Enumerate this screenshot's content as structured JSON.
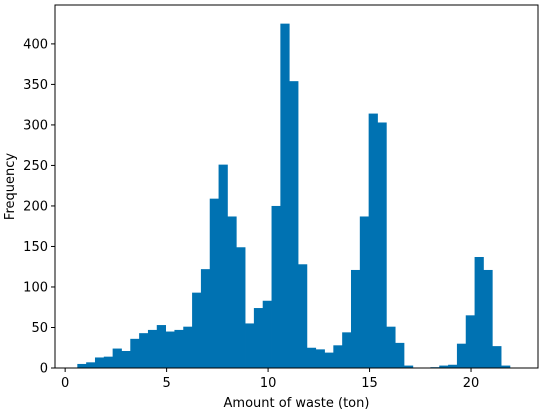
{
  "chart_data": {
    "type": "bar",
    "subtype": "histogram",
    "title": "",
    "xlabel": "Amount of waste (ton)",
    "ylabel": "Frequency",
    "xlim": [
      -0.5,
      23.3
    ],
    "ylim": [
      0,
      448
    ],
    "xticks": [
      0,
      5,
      10,
      15,
      20
    ],
    "yticks": [
      0,
      50,
      100,
      150,
      200,
      250,
      300,
      350,
      400
    ],
    "grid": false,
    "legend": "none",
    "bar_color": "#0072b2",
    "bins": {
      "start": 0.6,
      "width": 0.435,
      "values": [
        5,
        7,
        13,
        14,
        24,
        21,
        36,
        43,
        47,
        53,
        45,
        47,
        51,
        93,
        122,
        209,
        251,
        187,
        149,
        55,
        74,
        83,
        200,
        425,
        354,
        128,
        25,
        23,
        19,
        28,
        44,
        121,
        187,
        314,
        303,
        51,
        31,
        3,
        0,
        0,
        1,
        3,
        4,
        30,
        65,
        137,
        121,
        27,
        3
      ]
    }
  }
}
